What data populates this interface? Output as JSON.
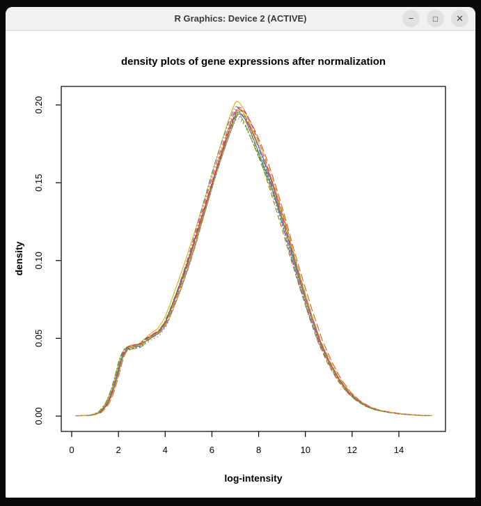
{
  "window": {
    "title": "R Graphics: Device 2 (ACTIVE)",
    "controls": {
      "minimize": {
        "icon": "−",
        "label": "minimize"
      },
      "maximize": {
        "icon": "□",
        "label": "maximize"
      },
      "close": {
        "icon": "✕",
        "label": "close"
      }
    }
  },
  "chart_data": {
    "type": "line",
    "title": "density plots of gene expressions after normalization",
    "xlabel": "log-intensity",
    "ylabel": "density",
    "x_ticks": [
      0,
      2,
      4,
      6,
      8,
      10,
      12,
      14
    ],
    "y_ticks": [
      0,
      0.05,
      0.1,
      0.15,
      0.2
    ],
    "y_tick_labels": [
      "0.00",
      "0.05",
      "0.10",
      "0.15",
      "0.20"
    ],
    "xlim": [
      -0.45,
      16.0
    ],
    "ylim": [
      -0.01,
      0.212
    ],
    "grid": false,
    "legend": "none",
    "n_curves": 14,
    "line_color_hint": "many nearly-identical overlapping density curves in teal/orange/magenta/olive/mustard/brown hues with mixed solid and dashed line types",
    "palette": [
      "#1B9E77",
      "#D95F02",
      "#7570B3",
      "#E7298A",
      "#66A61E",
      "#E6AB02",
      "#A6761D",
      "#666666"
    ],
    "base_curve": {
      "x": [
        0.2,
        0.6,
        0.9,
        1.2,
        1.5,
        1.7,
        1.9,
        2.1,
        2.3,
        2.5,
        2.7,
        2.9,
        3.1,
        3.4,
        3.7,
        4.0,
        4.3,
        4.6,
        4.9,
        5.2,
        5.5,
        5.8,
        6.1,
        6.4,
        6.7,
        6.9,
        7.05,
        7.2,
        7.4,
        7.7,
        8.0,
        8.3,
        8.6,
        9.0,
        9.4,
        9.8,
        10.2,
        10.6,
        11.0,
        11.4,
        11.8,
        12.2,
        12.6,
        13.0,
        13.5,
        14.0,
        14.5,
        15.0,
        15.4
      ],
      "density": [
        0.0002,
        0.0003,
        0.0008,
        0.0025,
        0.008,
        0.015,
        0.025,
        0.0365,
        0.042,
        0.0435,
        0.044,
        0.0445,
        0.047,
        0.0505,
        0.053,
        0.059,
        0.07,
        0.082,
        0.095,
        0.109,
        0.124,
        0.139,
        0.154,
        0.168,
        0.181,
        0.189,
        0.194,
        0.193,
        0.189,
        0.179,
        0.168,
        0.156,
        0.143,
        0.124,
        0.103,
        0.083,
        0.064,
        0.047,
        0.034,
        0.0235,
        0.0155,
        0.01,
        0.0063,
        0.004,
        0.0025,
        0.0015,
        0.0008,
        0.0004,
        0.0002
      ]
    },
    "series": [
      {
        "peak": 0.1965,
        "color": 0,
        "dash": "solid"
      },
      {
        "peak": 0.194,
        "color": 1,
        "dash": "dashed"
      },
      {
        "peak": 0.1925,
        "color": 2,
        "dash": "dotted"
      },
      {
        "peak": 0.1975,
        "color": 3,
        "dash": "dotdash"
      },
      {
        "peak": 0.195,
        "color": 4,
        "dash": "longdash"
      },
      {
        "peak": 0.2035,
        "color": 5,
        "dash": "solid"
      },
      {
        "peak": 0.199,
        "color": 6,
        "dash": "dashed"
      },
      {
        "peak": 0.1955,
        "color": 7,
        "dash": "dotted"
      },
      {
        "peak": 0.1985,
        "color": 0,
        "dash": "dotdash"
      },
      {
        "peak": 0.201,
        "color": 1,
        "dash": "longdash",
        "xshift": 0.15
      },
      {
        "peak": 0.1945,
        "color": 2,
        "dash": "solid"
      },
      {
        "peak": 0.1995,
        "color": 3,
        "dash": "dashed"
      },
      {
        "peak": 0.193,
        "color": 4,
        "dash": "dotted"
      },
      {
        "peak": 0.197,
        "color": 5,
        "dash": "dotdash",
        "xshift": 0.1
      }
    ]
  }
}
